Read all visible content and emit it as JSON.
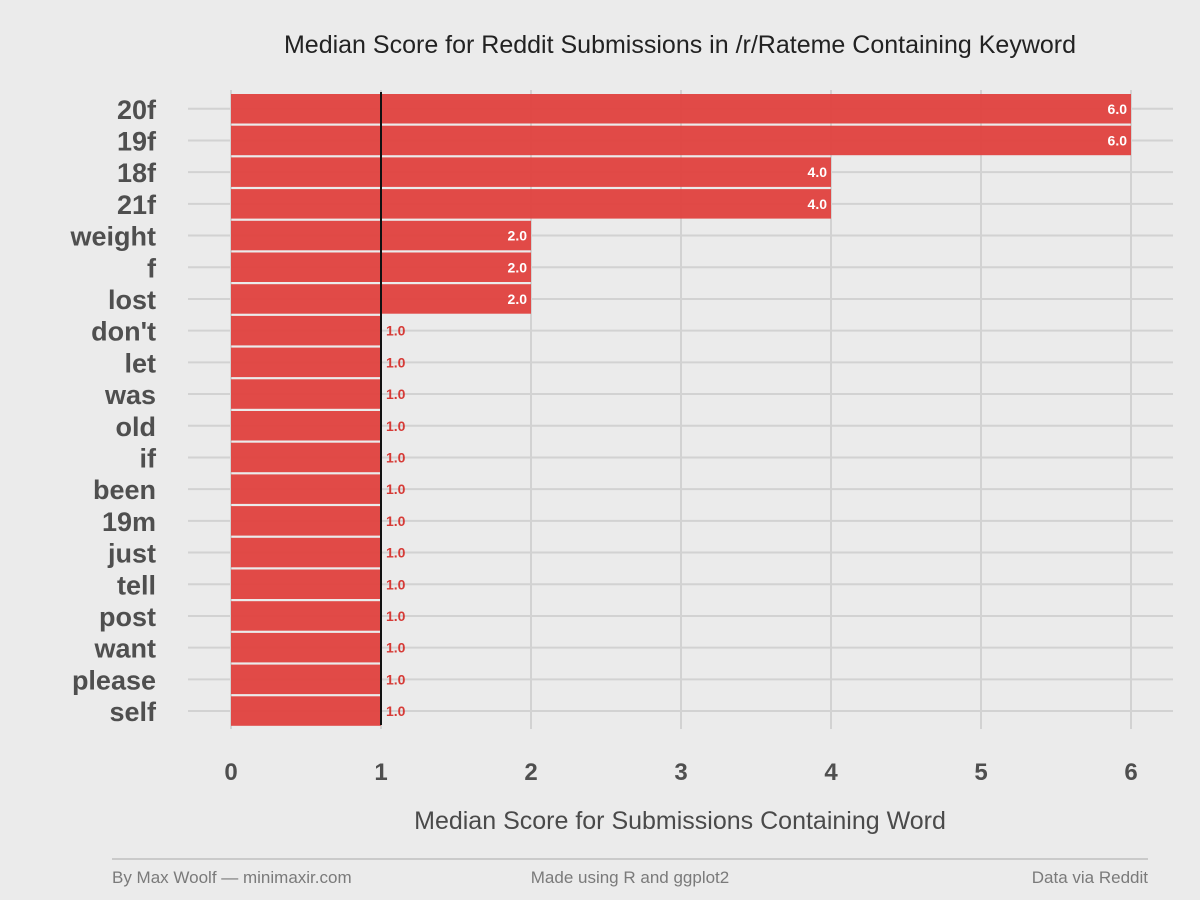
{
  "chart_data": {
    "type": "bar",
    "orientation": "horizontal",
    "title": "Median Score for Reddit Submissions in /r/Rateme Containing Keyword",
    "xlabel": "Median Score for Submissions Containing Word",
    "ylabel": "",
    "xlim": [
      0,
      6
    ],
    "xticks": [
      "0",
      "1",
      "2",
      "3",
      "4",
      "5",
      "6"
    ],
    "reference_line": 1,
    "grid": true,
    "bar_color": "#e0413e",
    "categories": [
      "20f",
      "19f",
      "18f",
      "21f",
      "weight",
      "f",
      "lost",
      "don't",
      "let",
      "was",
      "old",
      "if",
      "been",
      "19m",
      "just",
      "tell",
      "post",
      "want",
      "please",
      "self"
    ],
    "values": [
      6,
      6,
      4,
      4,
      2,
      2,
      2,
      1,
      1,
      1,
      1,
      1,
      1,
      1,
      1,
      1,
      1,
      1,
      1,
      1
    ],
    "data_labels": [
      "6.0",
      "6.0",
      "4.0",
      "4.0",
      "2.0",
      "2.0",
      "2.0",
      "1.0",
      "1.0",
      "1.0",
      "1.0",
      "1.0",
      "1.0",
      "1.0",
      "1.0",
      "1.0",
      "1.0",
      "1.0",
      "1.0",
      "1.0"
    ]
  },
  "footer": {
    "left": "By Max Woolf — minimaxir.com",
    "center": "Made using R and ggplot2",
    "right": "Data via Reddit"
  }
}
